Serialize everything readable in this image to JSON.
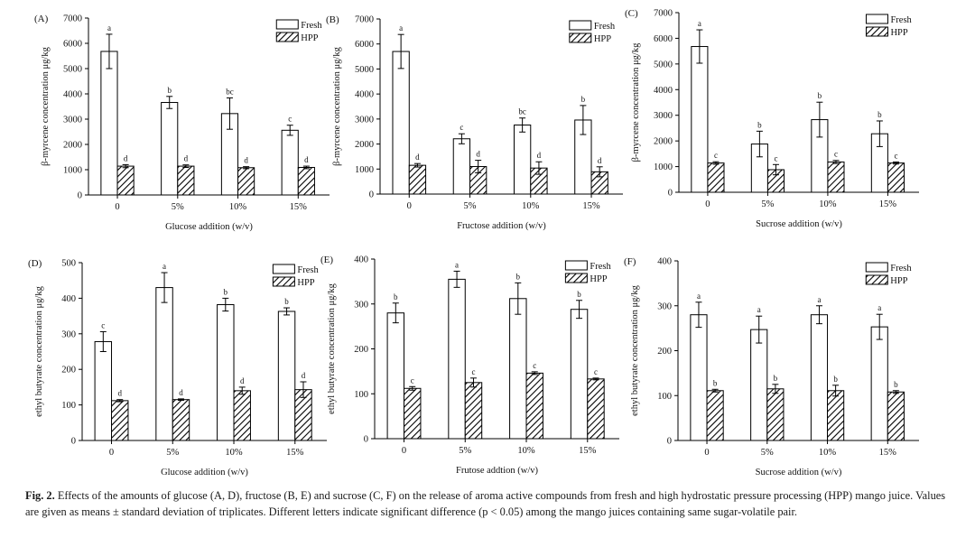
{
  "figure": {
    "caption_label": "Fig. 2.",
    "caption_text": "Effects of the amounts of glucose (A, D), fructose (B, E) and sucrose (C, F) on the release of aroma active compounds from fresh and high hydrostatic pressure processing (HPP) mango juice. Values are given as means ± standard deviation of triplicates. Different letters indicate significant difference (p < 0.05) among the mango juices containing same sugar-volatile pair."
  },
  "colors": {
    "fresh_fill": "#ffffff",
    "hpp_hatch": "#000000",
    "axis": "#000000"
  },
  "chart_data": [
    {
      "panel": "(A)",
      "type": "bar",
      "categories": [
        "0",
        "5%",
        "10%",
        "15%"
      ],
      "xlabel": "Glucose  addition (w/v)",
      "ylabel": "β-myrcene concentration  μg/kg",
      "ylim": [
        0,
        7000
      ],
      "yticks": [
        0,
        1000,
        2000,
        3000,
        4000,
        5000,
        6000,
        7000
      ],
      "legend": "top-right",
      "series": [
        {
          "name": "Fresh",
          "values": [
            5680,
            3660,
            3220,
            2560
          ],
          "errors": [
            680,
            240,
            620,
            200
          ],
          "letters": [
            "a",
            "b",
            "bc",
            "c"
          ]
        },
        {
          "name": "HPP",
          "values": [
            1140,
            1140,
            1080,
            1090
          ],
          "errors": [
            60,
            50,
            40,
            50
          ],
          "letters": [
            "d",
            "d",
            "d",
            "d"
          ]
        }
      ]
    },
    {
      "panel": "(B)",
      "type": "bar",
      "categories": [
        "0",
        "5%",
        "10%",
        "15%"
      ],
      "xlabel": "Fructose addition (w/v)",
      "ylabel": "β-myrcene concentration  μg/kg",
      "ylim": [
        0,
        7000
      ],
      "yticks": [
        0,
        1000,
        2000,
        3000,
        4000,
        5000,
        6000,
        7000
      ],
      "legend": "top-right",
      "series": [
        {
          "name": "Fresh",
          "values": [
            5700,
            2210,
            2760,
            2960
          ],
          "errors": [
            680,
            200,
            280,
            580
          ],
          "letters": [
            "a",
            "c",
            "bc",
            "b"
          ]
        },
        {
          "name": "HPP",
          "values": [
            1150,
            1100,
            1040,
            890
          ],
          "errors": [
            70,
            250,
            250,
            200
          ],
          "letters": [
            "d",
            "d",
            "d",
            "d"
          ]
        }
      ]
    },
    {
      "panel": "(C)",
      "type": "bar",
      "categories": [
        "0",
        "5%",
        "10%",
        "15%"
      ],
      "xlabel": "Sucrose addition (w/v)",
      "ylabel": "β-myrcene concentration  μg/kg",
      "ylim": [
        0,
        7000
      ],
      "yticks": [
        0,
        1000,
        2000,
        3000,
        4000,
        5000,
        6000,
        7000
      ],
      "legend": "top-right",
      "series": [
        {
          "name": "Fresh",
          "values": [
            5680,
            1880,
            2830,
            2280
          ],
          "errors": [
            650,
            500,
            680,
            500
          ],
          "letters": [
            "a",
            "b",
            "b",
            "b"
          ]
        },
        {
          "name": "HPP",
          "values": [
            1140,
            880,
            1180,
            1140
          ],
          "errors": [
            50,
            200,
            60,
            40
          ],
          "letters": [
            "c",
            "c",
            "c",
            "c"
          ]
        }
      ]
    },
    {
      "panel": "(D)",
      "type": "bar",
      "categories": [
        "0",
        "5%",
        "10%",
        "15%"
      ],
      "xlabel": "Glucose addition (w/v)",
      "ylabel": "ethyl butyrate concentration  μg/kg",
      "ylim": [
        0,
        500
      ],
      "yticks": [
        0,
        100,
        200,
        300,
        400,
        500
      ],
      "legend": "top-right",
      "series": [
        {
          "name": "Fresh",
          "values": [
            278,
            430,
            382,
            363
          ],
          "errors": [
            28,
            42,
            18,
            10
          ],
          "letters": [
            "c",
            "a",
            "b",
            "b"
          ]
        },
        {
          "name": "HPP",
          "values": [
            112,
            115,
            140,
            143
          ],
          "errors": [
            3,
            2,
            10,
            22
          ],
          "letters": [
            "d",
            "d",
            "d",
            "d"
          ]
        }
      ]
    },
    {
      "panel": "(E)",
      "type": "bar",
      "categories": [
        "0",
        "5%",
        "10%",
        "15%"
      ],
      "xlabel": "Frutose addtion (w/v)",
      "ylabel": "ethyl butyrate concentration  μg/kg",
      "ylim": [
        0,
        400
      ],
      "yticks": [
        0,
        100,
        200,
        300,
        400
      ],
      "legend": "top-right",
      "series": [
        {
          "name": "Fresh",
          "values": [
            280,
            355,
            312,
            288
          ],
          "errors": [
            22,
            18,
            35,
            20
          ],
          "letters": [
            "b",
            "a",
            "b",
            "b"
          ]
        },
        {
          "name": "HPP",
          "values": [
            112,
            125,
            146,
            133
          ],
          "errors": [
            4,
            10,
            3,
            2
          ],
          "letters": [
            "c",
            "c",
            "c",
            "c"
          ]
        }
      ]
    },
    {
      "panel": "(F)",
      "type": "bar",
      "categories": [
        "0",
        "5%",
        "10%",
        "15%"
      ],
      "xlabel": "Sucrose addition (w/v)",
      "ylabel": "ethyl butyrate concentration  μg/kg",
      "ylim": [
        0,
        400
      ],
      "yticks": [
        0,
        100,
        200,
        300,
        400
      ],
      "legend": "top-right",
      "series": [
        {
          "name": "Fresh",
          "values": [
            280,
            247,
            280,
            253
          ],
          "errors": [
            28,
            30,
            20,
            28
          ],
          "letters": [
            "a",
            "a",
            "a",
            "a"
          ]
        },
        {
          "name": "HPP",
          "values": [
            111,
            115,
            111,
            108
          ],
          "errors": [
            3,
            10,
            12,
            3
          ],
          "letters": [
            "b",
            "b",
            "b",
            "b"
          ]
        }
      ]
    }
  ]
}
